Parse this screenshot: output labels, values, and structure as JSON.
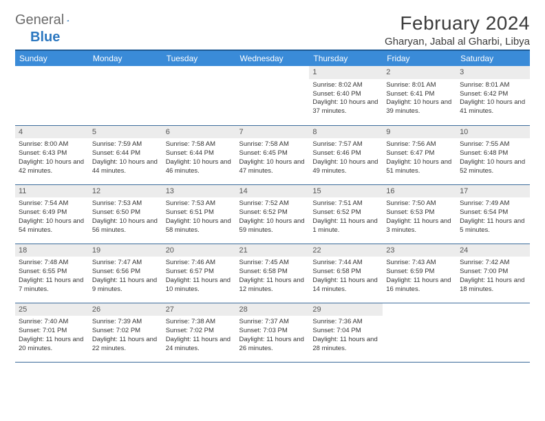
{
  "logo": {
    "general": "General",
    "blue": "Blue"
  },
  "header": {
    "month_title": "February 2024",
    "location": "Gharyan, Jabal al Gharbi, Libya"
  },
  "colors": {
    "header_bg": "#3a8bd8",
    "header_border_top": "#1e5a94",
    "cell_border": "#3a6a9a",
    "daynum_bg": "#ececec",
    "text": "#333333",
    "logo_gray": "#6a6a6a",
    "logo_blue": "#2b77c0"
  },
  "weekdays": [
    "Sunday",
    "Monday",
    "Tuesday",
    "Wednesday",
    "Thursday",
    "Friday",
    "Saturday"
  ],
  "weeks": [
    [
      null,
      null,
      null,
      null,
      {
        "n": "1",
        "sr": "8:02 AM",
        "ss": "6:40 PM",
        "dl": "10 hours and 37 minutes."
      },
      {
        "n": "2",
        "sr": "8:01 AM",
        "ss": "6:41 PM",
        "dl": "10 hours and 39 minutes."
      },
      {
        "n": "3",
        "sr": "8:01 AM",
        "ss": "6:42 PM",
        "dl": "10 hours and 41 minutes."
      }
    ],
    [
      {
        "n": "4",
        "sr": "8:00 AM",
        "ss": "6:43 PM",
        "dl": "10 hours and 42 minutes."
      },
      {
        "n": "5",
        "sr": "7:59 AM",
        "ss": "6:44 PM",
        "dl": "10 hours and 44 minutes."
      },
      {
        "n": "6",
        "sr": "7:58 AM",
        "ss": "6:44 PM",
        "dl": "10 hours and 46 minutes."
      },
      {
        "n": "7",
        "sr": "7:58 AM",
        "ss": "6:45 PM",
        "dl": "10 hours and 47 minutes."
      },
      {
        "n": "8",
        "sr": "7:57 AM",
        "ss": "6:46 PM",
        "dl": "10 hours and 49 minutes."
      },
      {
        "n": "9",
        "sr": "7:56 AM",
        "ss": "6:47 PM",
        "dl": "10 hours and 51 minutes."
      },
      {
        "n": "10",
        "sr": "7:55 AM",
        "ss": "6:48 PM",
        "dl": "10 hours and 52 minutes."
      }
    ],
    [
      {
        "n": "11",
        "sr": "7:54 AM",
        "ss": "6:49 PM",
        "dl": "10 hours and 54 minutes."
      },
      {
        "n": "12",
        "sr": "7:53 AM",
        "ss": "6:50 PM",
        "dl": "10 hours and 56 minutes."
      },
      {
        "n": "13",
        "sr": "7:53 AM",
        "ss": "6:51 PM",
        "dl": "10 hours and 58 minutes."
      },
      {
        "n": "14",
        "sr": "7:52 AM",
        "ss": "6:52 PM",
        "dl": "10 hours and 59 minutes."
      },
      {
        "n": "15",
        "sr": "7:51 AM",
        "ss": "6:52 PM",
        "dl": "11 hours and 1 minute."
      },
      {
        "n": "16",
        "sr": "7:50 AM",
        "ss": "6:53 PM",
        "dl": "11 hours and 3 minutes."
      },
      {
        "n": "17",
        "sr": "7:49 AM",
        "ss": "6:54 PM",
        "dl": "11 hours and 5 minutes."
      }
    ],
    [
      {
        "n": "18",
        "sr": "7:48 AM",
        "ss": "6:55 PM",
        "dl": "11 hours and 7 minutes."
      },
      {
        "n": "19",
        "sr": "7:47 AM",
        "ss": "6:56 PM",
        "dl": "11 hours and 9 minutes."
      },
      {
        "n": "20",
        "sr": "7:46 AM",
        "ss": "6:57 PM",
        "dl": "11 hours and 10 minutes."
      },
      {
        "n": "21",
        "sr": "7:45 AM",
        "ss": "6:58 PM",
        "dl": "11 hours and 12 minutes."
      },
      {
        "n": "22",
        "sr": "7:44 AM",
        "ss": "6:58 PM",
        "dl": "11 hours and 14 minutes."
      },
      {
        "n": "23",
        "sr": "7:43 AM",
        "ss": "6:59 PM",
        "dl": "11 hours and 16 minutes."
      },
      {
        "n": "24",
        "sr": "7:42 AM",
        "ss": "7:00 PM",
        "dl": "11 hours and 18 minutes."
      }
    ],
    [
      {
        "n": "25",
        "sr": "7:40 AM",
        "ss": "7:01 PM",
        "dl": "11 hours and 20 minutes."
      },
      {
        "n": "26",
        "sr": "7:39 AM",
        "ss": "7:02 PM",
        "dl": "11 hours and 22 minutes."
      },
      {
        "n": "27",
        "sr": "7:38 AM",
        "ss": "7:02 PM",
        "dl": "11 hours and 24 minutes."
      },
      {
        "n": "28",
        "sr": "7:37 AM",
        "ss": "7:03 PM",
        "dl": "11 hours and 26 minutes."
      },
      {
        "n": "29",
        "sr": "7:36 AM",
        "ss": "7:04 PM",
        "dl": "11 hours and 28 minutes."
      },
      null,
      null
    ]
  ],
  "labels": {
    "sunrise": "Sunrise: ",
    "sunset": "Sunset: ",
    "daylight": "Daylight: "
  }
}
